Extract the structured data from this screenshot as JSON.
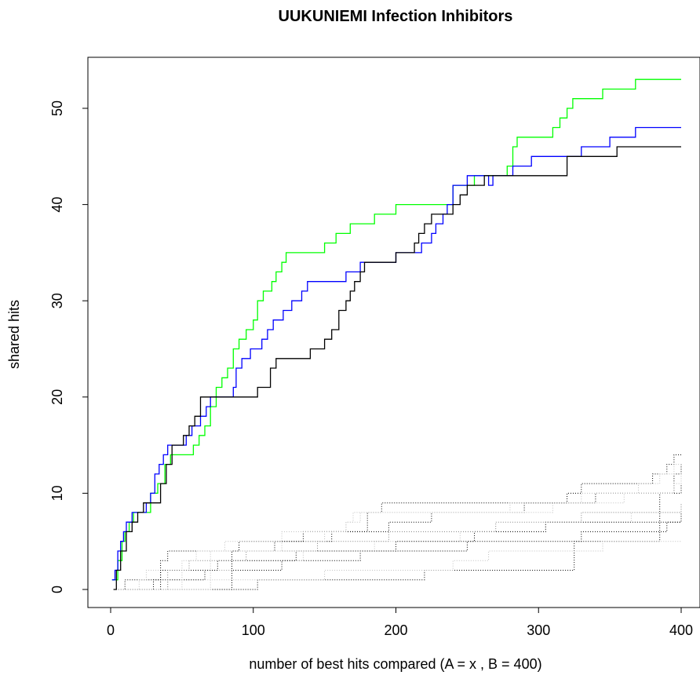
{
  "chart_data": {
    "type": "line",
    "title": "UUKUNIEMI Infection Inhibitors",
    "xlabel": "number of best hits compared (A = x , B = 400)",
    "ylabel": "shared hits",
    "xlim": [
      0,
      400
    ],
    "ylim": [
      0,
      53
    ],
    "xticks": [
      0,
      100,
      200,
      300,
      400
    ],
    "yticks": [
      0,
      10,
      20,
      30,
      40,
      50
    ],
    "grid": false,
    "legend": "none",
    "series": [
      {
        "color": "#00ff00",
        "style": "solid",
        "points": [
          [
            1,
            1
          ],
          [
            5,
            3
          ],
          [
            8,
            5
          ],
          [
            10,
            6
          ],
          [
            13,
            7
          ],
          [
            16,
            8
          ],
          [
            24,
            8
          ],
          [
            28,
            10
          ],
          [
            33,
            11
          ],
          [
            38,
            13
          ],
          [
            42,
            14
          ],
          [
            50,
            14
          ],
          [
            58,
            15
          ],
          [
            62,
            16
          ],
          [
            66,
            17
          ],
          [
            70,
            19
          ],
          [
            74,
            21
          ],
          [
            78,
            22
          ],
          [
            82,
            23
          ],
          [
            86,
            25
          ],
          [
            90,
            26
          ],
          [
            95,
            27
          ],
          [
            100,
            28
          ],
          [
            103,
            30
          ],
          [
            107,
            31
          ],
          [
            110,
            31
          ],
          [
            113,
            32
          ],
          [
            116,
            33
          ],
          [
            120,
            34
          ],
          [
            123,
            35
          ],
          [
            145,
            35
          ],
          [
            150,
            36
          ],
          [
            158,
            37
          ],
          [
            168,
            38
          ],
          [
            183,
            38
          ],
          [
            185,
            39
          ],
          [
            195,
            39
          ],
          [
            200,
            40
          ],
          [
            225,
            40
          ],
          [
            237,
            40
          ],
          [
            240,
            42
          ],
          [
            255,
            43
          ],
          [
            270,
            43
          ],
          [
            278,
            44
          ],
          [
            282,
            46
          ],
          [
            285,
            47
          ],
          [
            305,
            47
          ],
          [
            310,
            48
          ],
          [
            315,
            49
          ],
          [
            320,
            50
          ],
          [
            324,
            51
          ],
          [
            340,
            51
          ],
          [
            345,
            52
          ],
          [
            355,
            52
          ],
          [
            368,
            53
          ],
          [
            400,
            53
          ]
        ]
      },
      {
        "color": "#0000ff",
        "style": "solid",
        "points": [
          [
            1,
            1
          ],
          [
            3,
            2
          ],
          [
            5,
            4
          ],
          [
            7,
            5
          ],
          [
            9,
            6
          ],
          [
            11,
            7
          ],
          [
            15,
            8
          ],
          [
            20,
            8
          ],
          [
            25,
            9
          ],
          [
            28,
            10
          ],
          [
            31,
            12
          ],
          [
            34,
            13
          ],
          [
            37,
            14
          ],
          [
            40,
            15
          ],
          [
            50,
            15
          ],
          [
            53,
            16
          ],
          [
            57,
            17
          ],
          [
            63,
            18
          ],
          [
            67,
            19
          ],
          [
            70,
            20
          ],
          [
            83,
            20
          ],
          [
            86,
            21
          ],
          [
            88,
            23
          ],
          [
            92,
            24
          ],
          [
            98,
            25
          ],
          [
            106,
            26
          ],
          [
            110,
            27
          ],
          [
            114,
            28
          ],
          [
            121,
            29
          ],
          [
            127,
            30
          ],
          [
            134,
            31
          ],
          [
            138,
            32
          ],
          [
            155,
            32
          ],
          [
            165,
            33
          ],
          [
            175,
            34
          ],
          [
            193,
            34
          ],
          [
            200,
            35
          ],
          [
            218,
            36
          ],
          [
            225,
            37
          ],
          [
            228,
            38
          ],
          [
            233,
            39
          ],
          [
            236,
            40
          ],
          [
            240,
            42
          ],
          [
            245,
            42
          ],
          [
            250,
            43
          ],
          [
            262,
            43
          ],
          [
            265,
            42
          ],
          [
            268,
            43
          ],
          [
            280,
            43
          ],
          [
            282,
            44
          ],
          [
            290,
            44
          ],
          [
            295,
            45
          ],
          [
            320,
            45
          ],
          [
            330,
            46
          ],
          [
            347,
            46
          ],
          [
            350,
            47
          ],
          [
            365,
            47
          ],
          [
            368,
            48
          ],
          [
            400,
            48
          ]
        ]
      },
      {
        "color": "#000000",
        "style": "solid",
        "points": [
          [
            2,
            0
          ],
          [
            4,
            2
          ],
          [
            7,
            4
          ],
          [
            11,
            6
          ],
          [
            15,
            7
          ],
          [
            19,
            8
          ],
          [
            23,
            9
          ],
          [
            31,
            9
          ],
          [
            35,
            11
          ],
          [
            39,
            13
          ],
          [
            43,
            15
          ],
          [
            51,
            16
          ],
          [
            55,
            17
          ],
          [
            59,
            18
          ],
          [
            63,
            20
          ],
          [
            83,
            20
          ],
          [
            90,
            20
          ],
          [
            103,
            21
          ],
          [
            108,
            21
          ],
          [
            112,
            23
          ],
          [
            116,
            24
          ],
          [
            135,
            24
          ],
          [
            140,
            25
          ],
          [
            147,
            25
          ],
          [
            150,
            26
          ],
          [
            155,
            27
          ],
          [
            160,
            29
          ],
          [
            165,
            30
          ],
          [
            168,
            31
          ],
          [
            171,
            32
          ],
          [
            175,
            33
          ],
          [
            178,
            34
          ],
          [
            195,
            34
          ],
          [
            200,
            35
          ],
          [
            210,
            35
          ],
          [
            213,
            36
          ],
          [
            216,
            37
          ],
          [
            220,
            38
          ],
          [
            225,
            39
          ],
          [
            235,
            39
          ],
          [
            240,
            40
          ],
          [
            245,
            41
          ],
          [
            250,
            42
          ],
          [
            255,
            42
          ],
          [
            262,
            43
          ],
          [
            315,
            43
          ],
          [
            320,
            45
          ],
          [
            335,
            45
          ],
          [
            355,
            46
          ],
          [
            400,
            46
          ]
        ]
      },
      {
        "color": "#000000",
        "style": "dotted",
        "points": [
          [
            2,
            0
          ],
          [
            100,
            0
          ],
          [
            103,
            1
          ],
          [
            215,
            1
          ],
          [
            220,
            2
          ],
          [
            320,
            2
          ],
          [
            325,
            5
          ],
          [
            380,
            5
          ],
          [
            385,
            10
          ],
          [
            400,
            11
          ]
        ]
      },
      {
        "color": "#bfbfbf",
        "style": "dotted",
        "points": [
          [
            2,
            0
          ],
          [
            36,
            0
          ],
          [
            40,
            1
          ],
          [
            140,
            1
          ],
          [
            150,
            2
          ],
          [
            235,
            2
          ],
          [
            240,
            3
          ],
          [
            260,
            3
          ],
          [
            265,
            4
          ],
          [
            340,
            4
          ],
          [
            345,
            5
          ],
          [
            400,
            5
          ]
        ]
      },
      {
        "color": "#000000",
        "style": "dotted",
        "points": [
          [
            2,
            0
          ],
          [
            10,
            1
          ],
          [
            60,
            1
          ],
          [
            66,
            2
          ],
          [
            115,
            2
          ],
          [
            120,
            3
          ],
          [
            170,
            3
          ],
          [
            175,
            4
          ],
          [
            240,
            4
          ],
          [
            250,
            5
          ],
          [
            320,
            5
          ],
          [
            330,
            6
          ],
          [
            380,
            6
          ],
          [
            390,
            7
          ],
          [
            400,
            8
          ]
        ]
      },
      {
        "color": "#bfbfbf",
        "style": "dotted",
        "points": [
          [
            2,
            0
          ],
          [
            20,
            1
          ],
          [
            25,
            2
          ],
          [
            80,
            2
          ],
          [
            85,
            3
          ],
          [
            130,
            3
          ],
          [
            135,
            4
          ],
          [
            180,
            4
          ],
          [
            185,
            5
          ],
          [
            240,
            5
          ],
          [
            245,
            6
          ],
          [
            300,
            6
          ],
          [
            305,
            7
          ],
          [
            360,
            7
          ],
          [
            365,
            8
          ],
          [
            400,
            9
          ]
        ]
      },
      {
        "color": "#000000",
        "style": "dotted",
        "points": [
          [
            2,
            0
          ],
          [
            30,
            1
          ],
          [
            35,
            2
          ],
          [
            70,
            2
          ],
          [
            75,
            3
          ],
          [
            125,
            3
          ],
          [
            130,
            4
          ],
          [
            190,
            4
          ],
          [
            200,
            5
          ],
          [
            250,
            5
          ],
          [
            255,
            6
          ],
          [
            300,
            6
          ],
          [
            305,
            7
          ],
          [
            400,
            7
          ]
        ]
      },
      {
        "color": "#808080",
        "style": "dotted",
        "points": [
          [
            2,
            0
          ],
          [
            40,
            2
          ],
          [
            55,
            3
          ],
          [
            90,
            3
          ],
          [
            95,
            4
          ],
          [
            140,
            4
          ],
          [
            145,
            5
          ],
          [
            190,
            5
          ],
          [
            195,
            6
          ],
          [
            260,
            6
          ],
          [
            270,
            7
          ],
          [
            320,
            7
          ],
          [
            330,
            8
          ],
          [
            390,
            8
          ],
          [
            400,
            9
          ]
        ]
      },
      {
        "color": "#000000",
        "style": "dotted",
        "points": [
          [
            2,
            0
          ],
          [
            35,
            3
          ],
          [
            40,
            4
          ],
          [
            110,
            4
          ],
          [
            115,
            5
          ],
          [
            150,
            5
          ],
          [
            155,
            6
          ],
          [
            190,
            6
          ],
          [
            195,
            7
          ],
          [
            215,
            7
          ],
          [
            225,
            8
          ],
          [
            280,
            8
          ],
          [
            290,
            9
          ],
          [
            330,
            9
          ],
          [
            340,
            10
          ],
          [
            390,
            10
          ],
          [
            395,
            12
          ],
          [
            400,
            13
          ]
        ]
      },
      {
        "color": "#bfbfbf",
        "style": "dotted",
        "points": [
          [
            2,
            0
          ],
          [
            50,
            3
          ],
          [
            60,
            4
          ],
          [
            115,
            4
          ],
          [
            120,
            5
          ],
          [
            140,
            5
          ],
          [
            150,
            6
          ],
          [
            165,
            7
          ],
          [
            170,
            8
          ],
          [
            240,
            8
          ],
          [
            250,
            8
          ],
          [
            300,
            8
          ],
          [
            310,
            9
          ],
          [
            350,
            9
          ],
          [
            360,
            10
          ],
          [
            390,
            10
          ],
          [
            395,
            11
          ],
          [
            400,
            12
          ]
        ]
      },
      {
        "color": "#000000",
        "style": "dotted",
        "points": [
          [
            2,
            0
          ],
          [
            85,
            4
          ],
          [
            90,
            5
          ],
          [
            130,
            5
          ],
          [
            135,
            6
          ],
          [
            175,
            6
          ],
          [
            180,
            8
          ],
          [
            190,
            9
          ],
          [
            280,
            9
          ],
          [
            290,
            9
          ],
          [
            320,
            10
          ],
          [
            330,
            11
          ],
          [
            370,
            11
          ],
          [
            380,
            12
          ],
          [
            390,
            13
          ],
          [
            395,
            14
          ],
          [
            400,
            14
          ]
        ]
      },
      {
        "color": "#bfbfbf",
        "style": "dotted",
        "points": [
          [
            2,
            0
          ],
          [
            70,
            4
          ],
          [
            80,
            5
          ],
          [
            110,
            5
          ],
          [
            120,
            6
          ],
          [
            160,
            6
          ],
          [
            165,
            7
          ],
          [
            175,
            8
          ],
          [
            210,
            8
          ],
          [
            215,
            8
          ],
          [
            270,
            8
          ],
          [
            280,
            9
          ],
          [
            320,
            9
          ],
          [
            330,
            10
          ],
          [
            360,
            10
          ],
          [
            370,
            11
          ],
          [
            385,
            12
          ],
          [
            395,
            13
          ],
          [
            400,
            13
          ]
        ]
      }
    ]
  }
}
